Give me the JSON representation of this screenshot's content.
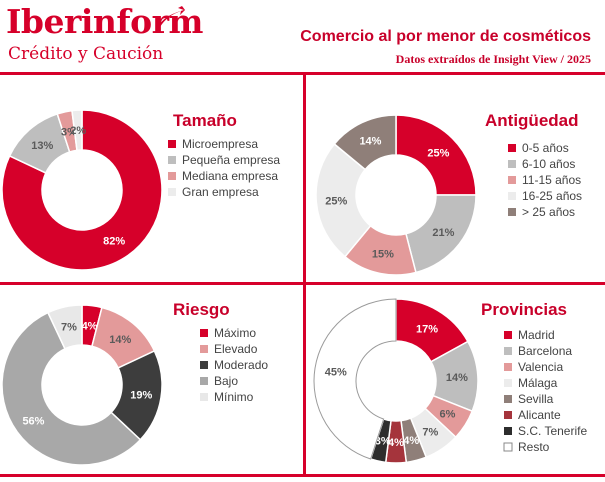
{
  "brand": {
    "name": "Iberinform",
    "tagline": "Crédito y Caución",
    "colors": {
      "accent": "#d6002a"
    }
  },
  "header": {
    "title": "Comercio al por menor de cosméticos",
    "subtitle": "Datos extraídos de Insight View / 2025"
  },
  "chart_data": [
    {
      "type": "pie",
      "variant": "donut",
      "title": "Tamaño",
      "categories": [
        "Microempresa",
        "Pequeña empresa",
        "Mediana empresa",
        "Gran empresa"
      ],
      "values": [
        82,
        13,
        3,
        2
      ],
      "labels": [
        "82%",
        "13%",
        "3%",
        "2%"
      ],
      "colors": [
        "#d6002a",
        "#bebebe",
        "#e39a9a",
        "#ececec"
      ]
    },
    {
      "type": "pie",
      "variant": "donut",
      "title": "Antigüedad",
      "categories": [
        "0-5 años",
        "6-10 años",
        "11-15 años",
        "16-25 años",
        "> 25 años"
      ],
      "values": [
        25,
        21,
        15,
        25,
        14
      ],
      "labels": [
        "25%",
        "21%",
        "15%",
        "25%",
        "14%"
      ],
      "colors": [
        "#d6002a",
        "#bebebe",
        "#e39a9a",
        "#ececec",
        "#8f7f79"
      ]
    },
    {
      "type": "pie",
      "variant": "donut",
      "title": "Riesgo",
      "categories": [
        "Máximo",
        "Elevado",
        "Moderado",
        "Bajo",
        "Mínimo"
      ],
      "values": [
        4,
        14,
        19,
        56,
        7
      ],
      "labels": [
        "4%",
        "14%",
        "19%",
        "56%",
        "7%"
      ],
      "colors": [
        "#d6002a",
        "#e39a9a",
        "#3d3d3d",
        "#a8a8a8",
        "#e8e8e8"
      ]
    },
    {
      "type": "pie",
      "variant": "donut",
      "title": "Provincias",
      "categories": [
        "Madrid",
        "Barcelona",
        "Valencia",
        "Málaga",
        "Sevilla",
        "Alicante",
        "S.C. Tenerife",
        "Resto"
      ],
      "values": [
        17,
        14,
        6,
        7,
        4,
        4,
        3,
        45
      ],
      "labels": [
        "17%",
        "14%",
        "6%",
        "7%",
        "4%",
        "4%",
        "3%",
        "45%"
      ],
      "colors": [
        "#d6002a",
        "#bebebe",
        "#e39a9a",
        "#ececec",
        "#8f7f79",
        "#a5343c",
        "#2d2d2d",
        "#ffffff"
      ]
    }
  ]
}
